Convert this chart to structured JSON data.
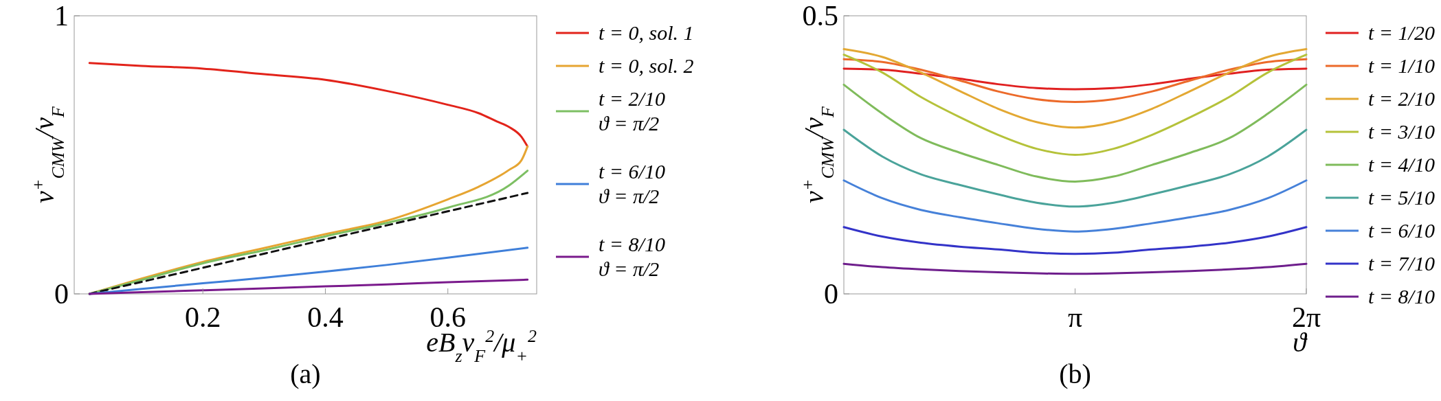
{
  "chart_data": [
    {
      "type": "line",
      "title": "(a)",
      "xlabel": "eB$_{z}$v$_{F}$$^{2}$/μ$_{+}$$^{2}$",
      "ylabel": "v$^{+}$$_{CMW}$/v$_{F}$",
      "xlim": [
        -0.01,
        0.745
      ],
      "ylim": [
        0,
        1
      ],
      "xticks": [
        0.2,
        0.4,
        0.6
      ],
      "yticks": [
        0,
        1
      ],
      "grid": false,
      "legend": "right",
      "marker": "none",
      "series": [
        {
          "name": "t = 0, sol. 1",
          "color": "#e2231a",
          "x": [
            0.015,
            0.1,
            0.2,
            0.3,
            0.4,
            0.5,
            0.6,
            0.65,
            0.68,
            0.7,
            0.72,
            0.73
          ],
          "values": [
            0.83,
            0.82,
            0.81,
            0.79,
            0.77,
            0.73,
            0.68,
            0.65,
            0.62,
            0.6,
            0.565,
            0.53
          ]
        },
        {
          "name": "t = 0, sol. 2",
          "color": "#e6a532",
          "x": [
            0.015,
            0.1,
            0.2,
            0.3,
            0.4,
            0.5,
            0.6,
            0.65,
            0.7,
            0.72,
            0.73
          ],
          "values": [
            0,
            0.055,
            0.115,
            0.165,
            0.215,
            0.263,
            0.34,
            0.385,
            0.446,
            0.48,
            0.53
          ]
        },
        {
          "name": "t = 2/10\nϑ = π/2",
          "color": "#7dbf63",
          "x": [
            0.015,
            0.1,
            0.2,
            0.3,
            0.4,
            0.5,
            0.6,
            0.7,
            0.73
          ],
          "values": [
            0,
            0.05,
            0.11,
            0.157,
            0.207,
            0.255,
            0.31,
            0.39,
            0.443
          ]
        },
        {
          "color": "#111111",
          "line_style": "dashed",
          "x": [
            0.015,
            0.73
          ],
          "values": [
            0,
            0.363
          ]
        },
        {
          "name": "t = 6/10\nϑ = π/2",
          "color": "#3f7fd9",
          "x": [
            0.015,
            0.1,
            0.2,
            0.3,
            0.4,
            0.5,
            0.6,
            0.73
          ],
          "values": [
            0,
            0.018,
            0.038,
            0.058,
            0.08,
            0.104,
            0.13,
            0.166
          ]
        },
        {
          "name": "t = 8/10\nϑ = π/2",
          "color": "#7a1a8c",
          "x": [
            0.015,
            0.1,
            0.2,
            0.3,
            0.4,
            0.5,
            0.6,
            0.73
          ],
          "values": [
            0,
            0.006,
            0.013,
            0.02,
            0.027,
            0.034,
            0.042,
            0.051
          ]
        }
      ]
    },
    {
      "type": "line",
      "title": "(b)",
      "xlabel": "ϑ",
      "ylabel": "v$^{+}$$_{CMW}$/v$_{F}$",
      "xlim": [
        0,
        6.2832
      ],
      "ylim": [
        0,
        0.5
      ],
      "xticks": [
        {
          "value": 3.1416,
          "label": "π"
        },
        {
          "value": 6.2832,
          "label": "2π"
        }
      ],
      "yticks": [
        0,
        0.5
      ],
      "grid": false,
      "legend": "right",
      "marker": "none",
      "x": [
        0,
        0.5236,
        1.0472,
        1.5708,
        2.0944,
        2.618,
        3.1416,
        3.6652,
        4.1888,
        4.7124,
        5.236,
        5.7596,
        6.2832
      ],
      "series": [
        {
          "name": "t = 1/20",
          "color": "#e02020",
          "values": [
            0.405,
            0.403,
            0.396,
            0.387,
            0.377,
            0.37,
            0.368,
            0.37,
            0.377,
            0.387,
            0.396,
            0.403,
            0.405
          ]
        },
        {
          "name": "t = 1/10",
          "color": "#ec6a2a",
          "values": [
            0.422,
            0.417,
            0.403,
            0.384,
            0.364,
            0.35,
            0.345,
            0.35,
            0.364,
            0.384,
            0.403,
            0.417,
            0.422
          ]
        },
        {
          "name": "t = 2/10",
          "color": "#e3a833",
          "values": [
            0.44,
            0.426,
            0.398,
            0.365,
            0.333,
            0.309,
            0.299,
            0.309,
            0.333,
            0.365,
            0.398,
            0.426,
            0.44
          ]
        },
        {
          "name": "t = 3/10",
          "color": "#b5c23a",
          "values": [
            0.43,
            0.398,
            0.354,
            0.318,
            0.286,
            0.261,
            0.25,
            0.261,
            0.286,
            0.318,
            0.354,
            0.398,
            0.43
          ]
        },
        {
          "name": "t = 4/10",
          "color": "#7fbb5b",
          "values": [
            0.376,
            0.324,
            0.28,
            0.254,
            0.232,
            0.211,
            0.202,
            0.211,
            0.232,
            0.254,
            0.28,
            0.324,
            0.376
          ]
        },
        {
          "name": "t = 5/10",
          "color": "#4aa39a",
          "values": [
            0.295,
            0.247,
            0.215,
            0.196,
            0.179,
            0.164,
            0.157,
            0.164,
            0.179,
            0.196,
            0.215,
            0.247,
            0.295
          ]
        },
        {
          "name": "t = 6/10",
          "color": "#4681d9",
          "values": [
            0.204,
            0.172,
            0.151,
            0.138,
            0.127,
            0.117,
            0.112,
            0.117,
            0.127,
            0.138,
            0.151,
            0.172,
            0.204
          ]
        },
        {
          "name": "t = 7/10",
          "color": "#3333c8",
          "values": [
            0.12,
            0.103,
            0.092,
            0.085,
            0.08,
            0.074,
            0.072,
            0.074,
            0.08,
            0.085,
            0.092,
            0.103,
            0.12
          ]
        },
        {
          "name": "t = 8/10",
          "color": "#6e1e8c",
          "values": [
            0.054,
            0.048,
            0.044,
            0.041,
            0.039,
            0.037,
            0.036,
            0.037,
            0.039,
            0.041,
            0.044,
            0.048,
            0.054
          ]
        }
      ]
    }
  ]
}
